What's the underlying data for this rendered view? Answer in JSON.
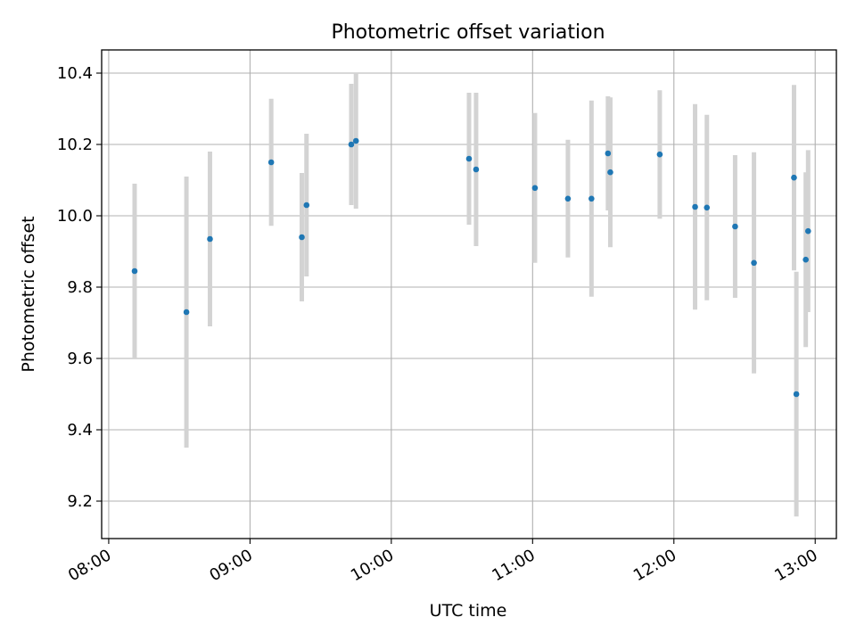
{
  "chart_data": {
    "type": "scatter",
    "title": "Photometric offset variation",
    "xlabel": "UTC time",
    "ylabel": "Photometric offset",
    "x_ticks": [
      "08:00",
      "09:00",
      "10:00",
      "11:00",
      "12:00",
      "13:00"
    ],
    "y_ticks": [
      "9.2",
      "9.4",
      "9.6",
      "9.8",
      "10.0",
      "10.2",
      "10.4"
    ],
    "xlim": [
      "07:57",
      "13:09"
    ],
    "ylim": [
      9.095,
      10.465
    ],
    "grid": true,
    "legend": "none",
    "marker_color": "#1f77b4",
    "errorbar_color": "#d3d3d3",
    "points": [
      {
        "t": "08:11",
        "y": 9.845,
        "err": 0.245
      },
      {
        "t": "08:33",
        "y": 9.73,
        "err": 0.38
      },
      {
        "t": "08:43",
        "y": 9.935,
        "err": 0.245
      },
      {
        "t": "09:09",
        "y": 10.15,
        "err": 0.178
      },
      {
        "t": "09:22",
        "y": 9.94,
        "err": 0.18
      },
      {
        "t": "09:24",
        "y": 10.03,
        "err": 0.2
      },
      {
        "t": "09:43",
        "y": 10.2,
        "err": 0.17
      },
      {
        "t": "09:45",
        "y": 10.21,
        "err": 0.19
      },
      {
        "t": "10:33",
        "y": 10.16,
        "err": 0.185
      },
      {
        "t": "10:36",
        "y": 10.13,
        "err": 0.215
      },
      {
        "t": "11:01",
        "y": 10.078,
        "err": 0.21
      },
      {
        "t": "11:15",
        "y": 10.048,
        "err": 0.165
      },
      {
        "t": "11:25",
        "y": 10.048,
        "err": 0.275
      },
      {
        "t": "11:32",
        "y": 10.175,
        "err": 0.16
      },
      {
        "t": "11:33",
        "y": 10.122,
        "err": 0.21
      },
      {
        "t": "11:54",
        "y": 10.172,
        "err": 0.18
      },
      {
        "t": "12:09",
        "y": 10.025,
        "err": 0.288
      },
      {
        "t": "12:14",
        "y": 10.023,
        "err": 0.26
      },
      {
        "t": "12:26",
        "y": 9.97,
        "err": 0.2
      },
      {
        "t": "12:34",
        "y": 9.868,
        "err": 0.31
      },
      {
        "t": "12:51",
        "y": 10.107,
        "err": 0.26
      },
      {
        "t": "12:52",
        "y": 9.5,
        "err": 0.343
      },
      {
        "t": "12:56",
        "y": 9.877,
        "err": 0.245
      },
      {
        "t": "12:57",
        "y": 9.957,
        "err": 0.227
      }
    ]
  }
}
